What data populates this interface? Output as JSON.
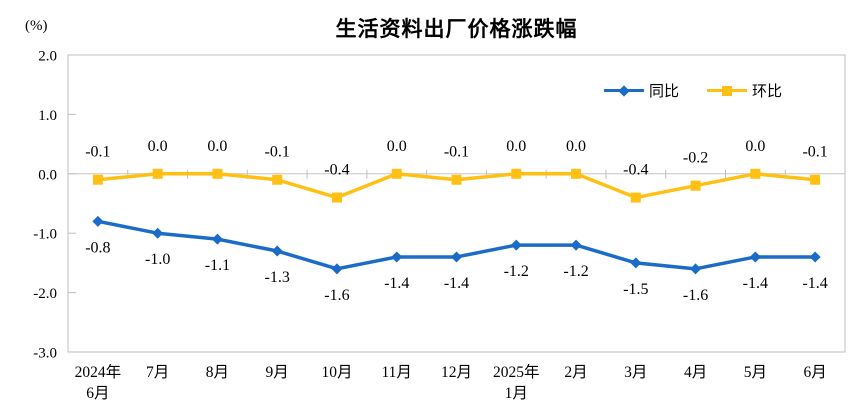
{
  "chart_data": {
    "type": "line",
    "title": "生活资料出厂价格涨跌幅",
    "y_unit_label": "(%)",
    "categories": [
      "2024年\n6月",
      "7月",
      "8月",
      "9月",
      "10月",
      "11月",
      "12月",
      "2025年\n1月",
      "2月",
      "3月",
      "4月",
      "5月",
      "6月"
    ],
    "series": [
      {
        "name": "同比",
        "color": "#1A6CC8",
        "marker": "diamond",
        "label_position": "below",
        "values": [
          -0.8,
          -1.0,
          -1.1,
          -1.3,
          -1.6,
          -1.4,
          -1.4,
          -1.2,
          -1.2,
          -1.5,
          -1.6,
          -1.4,
          -1.4
        ],
        "labels": [
          "-0.8",
          "-1.0",
          "-1.1",
          "-1.3",
          "-1.6",
          "-1.4",
          "-1.4",
          "-1.2",
          "-1.2",
          "-1.5",
          "-1.6",
          "-1.4",
          "-1.4"
        ]
      },
      {
        "name": "环比",
        "color": "#FFC013",
        "marker": "square",
        "label_position": "above",
        "values": [
          -0.1,
          0.0,
          0.0,
          -0.1,
          -0.4,
          0.0,
          -0.1,
          0.0,
          0.0,
          -0.4,
          -0.2,
          0.0,
          -0.1
        ],
        "labels": [
          "-0.1",
          "0.0",
          "0.0",
          "-0.1",
          "-0.4",
          "0.0",
          "-0.1",
          "0.0",
          "0.0",
          "-0.4",
          "-0.2",
          "0.0",
          "-0.1"
        ]
      }
    ],
    "ylim": [
      -3.0,
      2.0
    ],
    "yticks": [
      2.0,
      1.0,
      0.0,
      -1.0,
      -2.0,
      -3.0
    ],
    "ytick_labels": [
      "2.0",
      "1.0",
      "0.0",
      "-1.0",
      "-2.0",
      "-3.0"
    ],
    "grid": "zero-line-only",
    "legend_position": "top-right-inside",
    "axis_color": "#BFBFBF",
    "zero_line_color": "#C6C6C6",
    "text_color": "#000000"
  }
}
